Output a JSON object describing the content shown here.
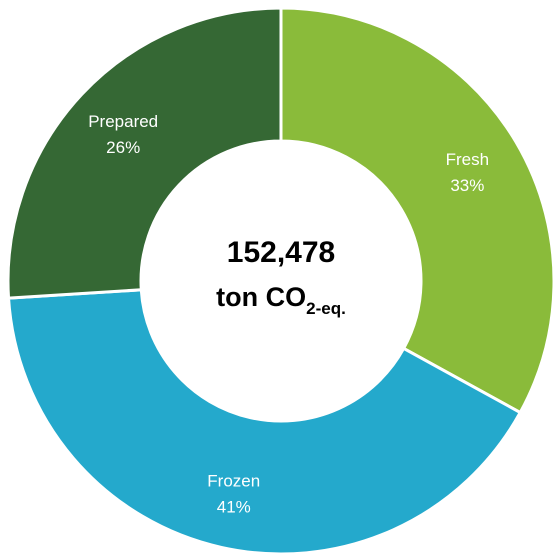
{
  "chart_data": {
    "type": "pie",
    "variant": "donut",
    "slices": [
      {
        "name": "Fresh",
        "value": 33,
        "value_label": "33%",
        "color": "#8ABB3A"
      },
      {
        "name": "Frozen",
        "value": 41,
        "value_label": "41%",
        "color": "#24A9CC"
      },
      {
        "name": "Prepared",
        "value": 26,
        "value_label": "26%",
        "color": "#356834"
      }
    ],
    "center": {
      "total": "152,478",
      "unit_prefix": "ton CO",
      "unit_subscript": "2-eq."
    },
    "legend": "none"
  }
}
